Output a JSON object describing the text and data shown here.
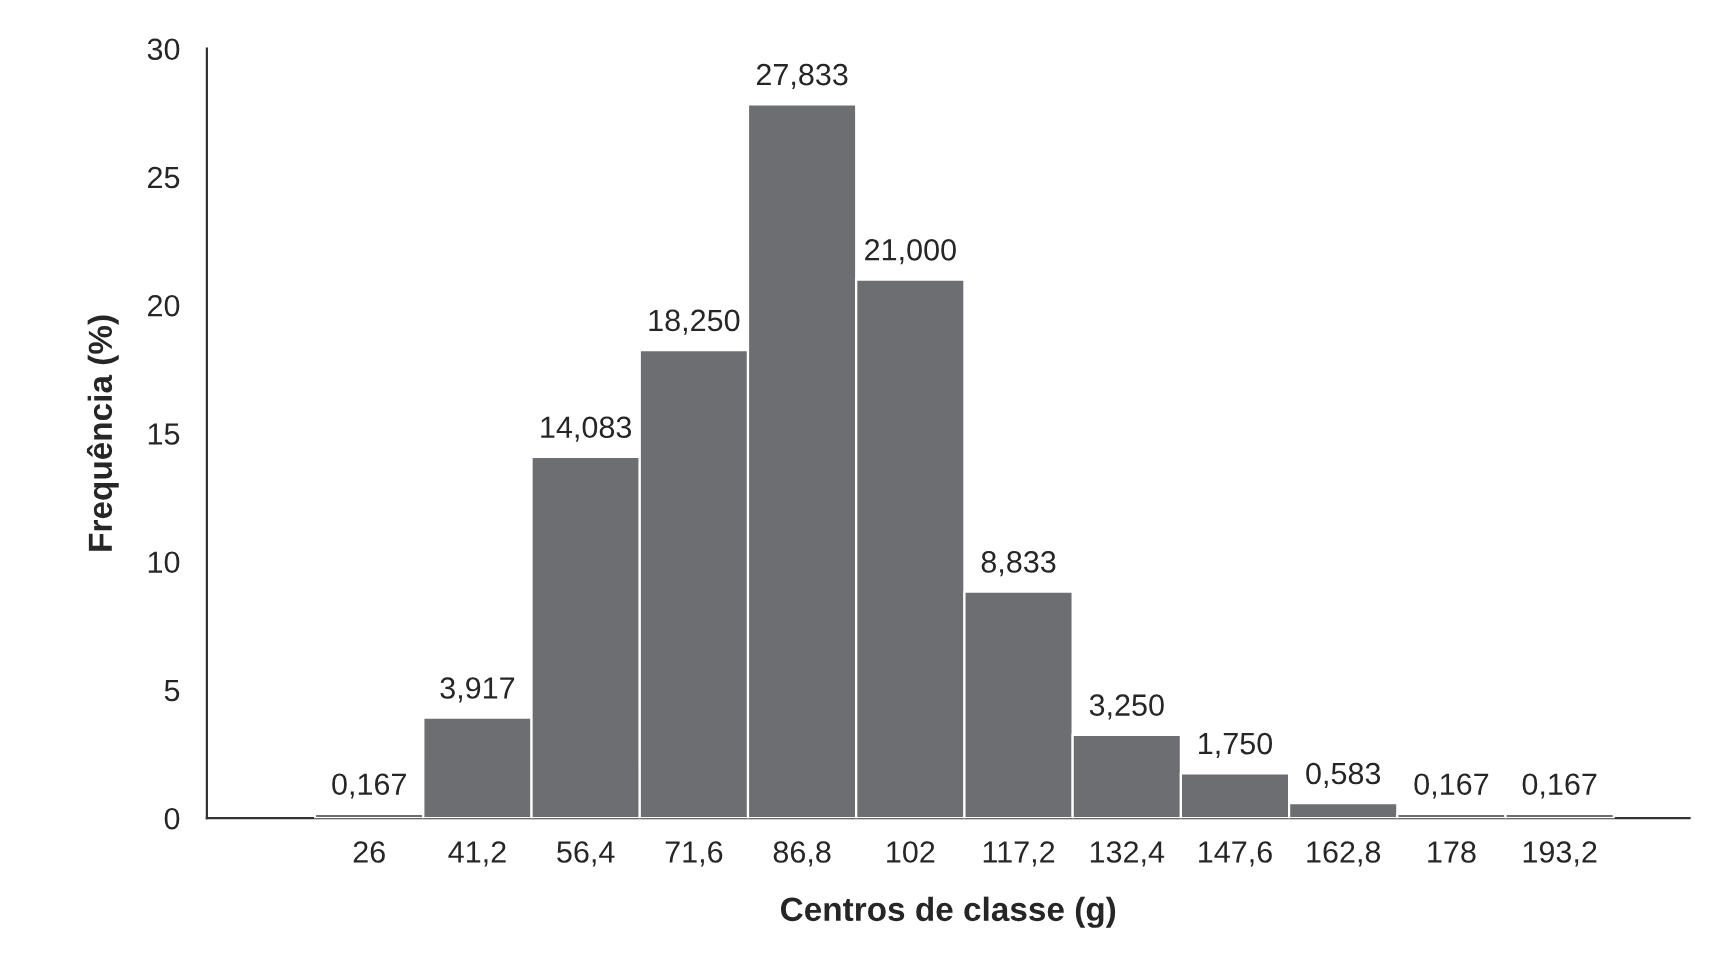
{
  "chart_data": {
    "type": "bar",
    "xlabel": "Centros de classe (g)",
    "ylabel": "Frequência (%)",
    "categories": [
      null,
      "26",
      "41,2",
      "56,4",
      "71,6",
      "86,8",
      "102",
      "117,2",
      "132,4",
      "147,6",
      "162,8",
      "178",
      "193,2"
    ],
    "values": [
      null,
      0.167,
      3.917,
      14.083,
      18.25,
      27.833,
      21.0,
      8.833,
      3.25,
      1.75,
      0.583,
      0.167,
      0.167
    ],
    "value_labels": [
      null,
      "0,167",
      "3,917",
      "14,083",
      "18,250",
      "27,833",
      "21,000",
      "8,833",
      "3,250",
      "1,750",
      "0,583",
      "0,167",
      "0,167"
    ],
    "color": "#6d6e71",
    "ylim": [
      0,
      30
    ],
    "yticks": [
      0,
      5,
      10,
      15,
      20,
      25,
      30
    ],
    "grid": false,
    "legend": false
  }
}
